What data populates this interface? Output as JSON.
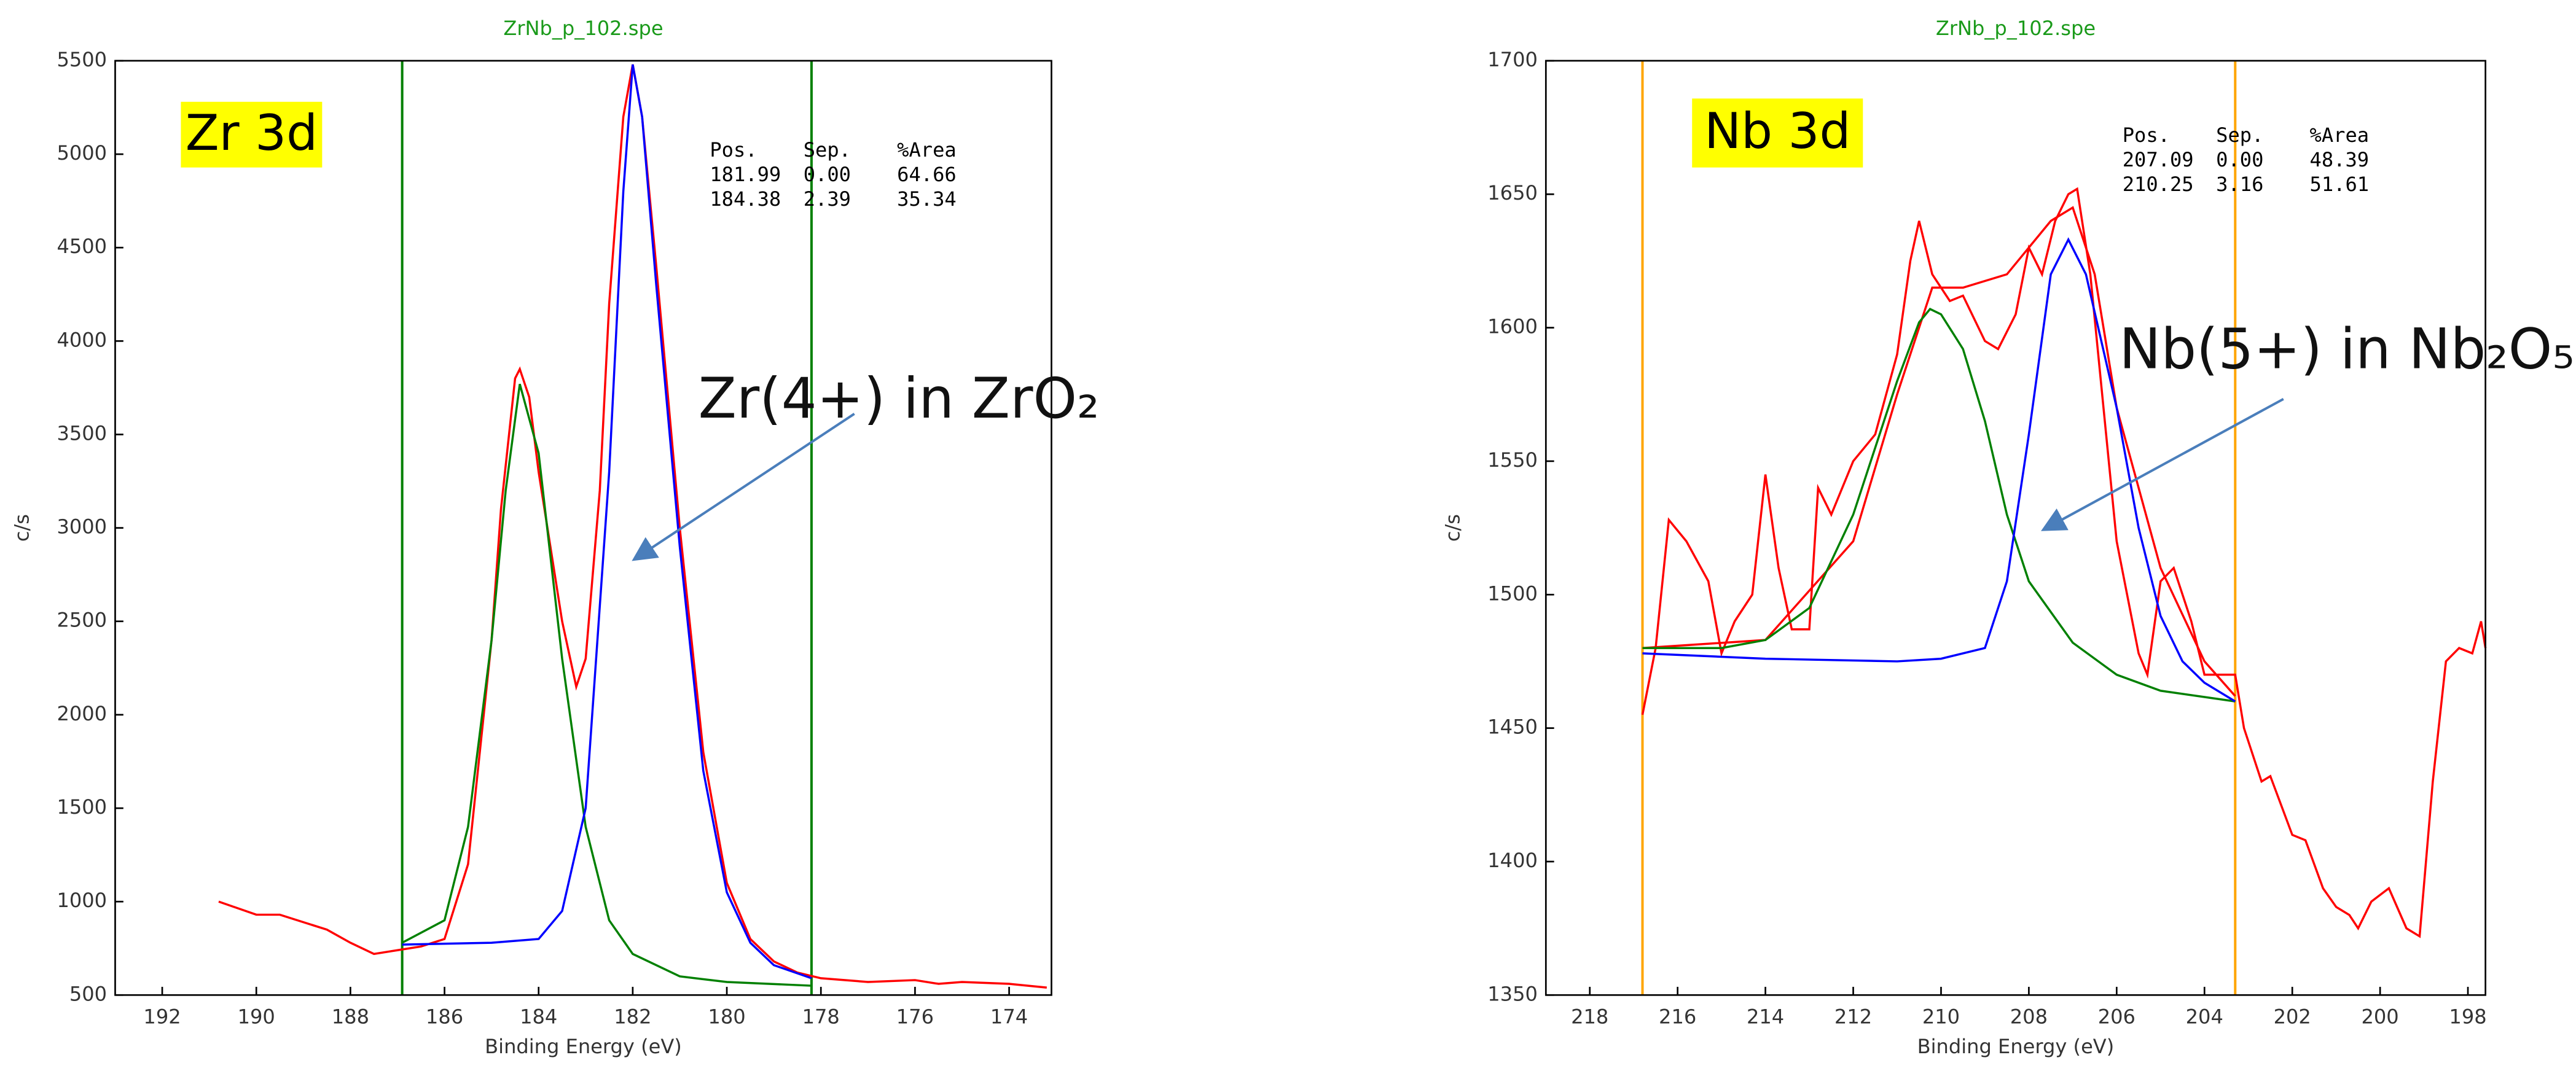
{
  "chart_data": [
    {
      "type": "line",
      "title": "ZrNb_p_102.spe",
      "xlabel": "Binding Energy (eV)",
      "ylabel": "c/s",
      "xlim": [
        193,
        173.1
      ],
      "xticks": [
        192,
        190,
        188,
        186,
        184,
        182,
        180,
        178,
        176,
        174
      ],
      "ylim": [
        500,
        5500
      ],
      "yticks": [
        500,
        1000,
        1500,
        2000,
        2500,
        3000,
        3500,
        4000,
        4500,
        5000,
        5500
      ],
      "markers": [
        {
          "x": 186.9,
          "color": "#008000"
        },
        {
          "x": 178.2,
          "color": "#008000"
        }
      ],
      "label": "Zr 3d",
      "callout": "Zr(4+) in ZrO₂",
      "peak_table": {
        "headers": [
          "Pos.",
          "Sep.",
          "%Area"
        ],
        "rows": [
          [
            "181.99",
            "0.00",
            "64.66"
          ],
          [
            "184.38",
            "2.39",
            "35.34"
          ]
        ]
      },
      "series": [
        {
          "color": "#ff0000",
          "x": [
            190.8,
            190,
            189.5,
            189,
            188.5,
            188,
            187.5,
            187,
            186.5,
            186,
            185.5,
            185,
            184.8,
            184.5,
            184.4,
            184.2,
            184,
            183.5,
            183.2,
            183,
            182.7,
            182.5,
            182.2,
            182,
            181.8,
            181.5,
            181,
            180.5,
            180,
            179.5,
            179,
            178.5,
            178,
            177,
            176,
            175.5,
            175,
            174,
            173.2
          ],
          "values": [
            1000,
            930,
            930,
            890,
            850,
            780,
            720,
            740,
            760,
            800,
            1200,
            2400,
            3100,
            3800,
            3850,
            3700,
            3300,
            2500,
            2150,
            2300,
            3200,
            4200,
            5200,
            5480,
            5200,
            4400,
            3000,
            1800,
            1100,
            800,
            680,
            620,
            590,
            570,
            580,
            560,
            570,
            560,
            540
          ]
        },
        {
          "color": "#008000",
          "x": [
            186.9,
            186,
            185.5,
            185,
            184.7,
            184.4,
            184,
            183.5,
            183,
            182.5,
            182,
            181,
            180,
            178.2
          ],
          "values": [
            780,
            900,
            1400,
            2400,
            3200,
            3770,
            3400,
            2300,
            1400,
            900,
            720,
            600,
            570,
            550
          ]
        },
        {
          "color": "#0000ff",
          "x": [
            186.9,
            185,
            184,
            183.5,
            183,
            182.5,
            182.2,
            182,
            181.8,
            181.5,
            181,
            180.5,
            180,
            179.5,
            179,
            178.2
          ],
          "values": [
            770,
            780,
            800,
            950,
            1500,
            3300,
            4800,
            5480,
            5200,
            4300,
            2900,
            1700,
            1050,
            780,
            660,
            590
          ]
        }
      ]
    },
    {
      "type": "line",
      "title": "ZrNb_p_102.spe",
      "xlabel": "Binding Energy (eV)",
      "ylabel": "c/s",
      "xlim": [
        219,
        197.6
      ],
      "xticks": [
        218,
        216,
        214,
        212,
        210,
        208,
        206,
        204,
        202,
        200,
        198
      ],
      "ylim": [
        1350,
        1700
      ],
      "yticks": [
        1350,
        1400,
        1450,
        1500,
        1550,
        1600,
        1650,
        1700
      ],
      "markers": [
        {
          "x": 216.8,
          "color": "#ffa500"
        },
        {
          "x": 203.3,
          "color": "#ffa500"
        }
      ],
      "label": "Nb 3d",
      "callout": "Nb(5+) in Nb₂O₅",
      "peak_table": {
        "headers": [
          "Pos.",
          "Sep.",
          "%Area"
        ],
        "rows": [
          [
            "207.09",
            "0.00",
            "48.39"
          ],
          [
            "210.25",
            "3.16",
            "51.61"
          ]
        ]
      },
      "series": [
        {
          "color": "#ff0000",
          "x": [
            216.8,
            216.5,
            216.2,
            215.8,
            215.3,
            215,
            214.7,
            214.3,
            214,
            213.7,
            213.4,
            213,
            212.8,
            212.5,
            212,
            211.5,
            211,
            210.7,
            210.5,
            210.2,
            209.8,
            209.5,
            209,
            208.7,
            208.3,
            208,
            207.7,
            207.4,
            207.1,
            206.9,
            206.6,
            206.3,
            206,
            205.5,
            205.3,
            205,
            204.7,
            204.3,
            204,
            203.3,
            203.1,
            202.7,
            202.5,
            202,
            201.7,
            201.3,
            201,
            200.7,
            200.5,
            200.2,
            199.8,
            199.4,
            199.1,
            198.8,
            198.5,
            198.2,
            197.9,
            197.7,
            197.6
          ],
          "values": [
            1455,
            1480,
            1528,
            1520,
            1505,
            1478,
            1490,
            1500,
            1545,
            1510,
            1487,
            1487,
            1540,
            1530,
            1550,
            1560,
            1590,
            1625,
            1640,
            1620,
            1610,
            1612,
            1595,
            1592,
            1605,
            1630,
            1620,
            1640,
            1650,
            1652,
            1620,
            1570,
            1520,
            1478,
            1470,
            1505,
            1510,
            1490,
            1470,
            1470,
            1450,
            1430,
            1432,
            1410,
            1408,
            1390,
            1383,
            1380,
            1375,
            1385,
            1390,
            1375,
            1372,
            1430,
            1475,
            1480,
            1478,
            1490,
            1480
          ]
        },
        {
          "color": "#ff0000",
          "x": [
            216.8,
            214,
            212,
            211,
            210.2,
            209.5,
            208.5,
            207.5,
            207,
            206.5,
            206,
            205,
            204,
            203.3
          ],
          "values": [
            1480,
            1483,
            1520,
            1575,
            1615,
            1615,
            1620,
            1640,
            1645,
            1620,
            1570,
            1510,
            1475,
            1462
          ]
        },
        {
          "color": "#008000",
          "x": [
            216.8,
            215,
            214,
            213,
            212,
            211,
            210.5,
            210.25,
            210,
            209.5,
            209,
            208.5,
            208,
            207,
            206,
            205,
            203.3
          ],
          "values": [
            1480,
            1480,
            1483,
            1495,
            1530,
            1580,
            1602,
            1607,
            1605,
            1592,
            1565,
            1530,
            1505,
            1482,
            1470,
            1464,
            1460
          ]
        },
        {
          "color": "#0000ff",
          "x": [
            216.8,
            214,
            211,
            210,
            209,
            208.5,
            208,
            207.5,
            207.1,
            206.7,
            206,
            205.5,
            205,
            204.5,
            204,
            203.3
          ],
          "values": [
            1478,
            1476,
            1475,
            1476,
            1480,
            1505,
            1560,
            1620,
            1633,
            1620,
            1570,
            1525,
            1492,
            1475,
            1467,
            1460
          ]
        }
      ]
    }
  ]
}
